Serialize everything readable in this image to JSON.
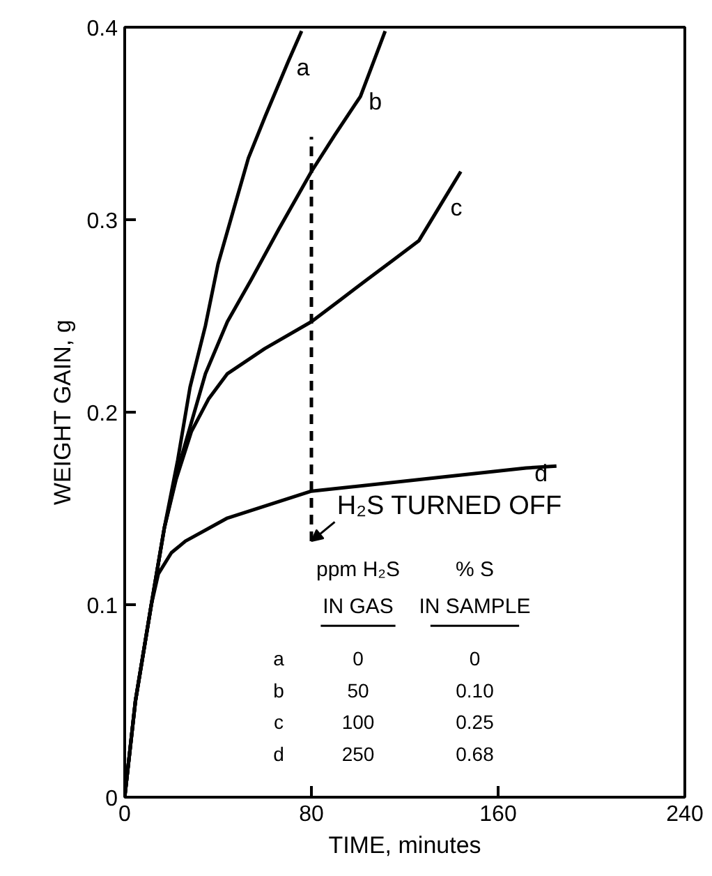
{
  "chart_data": {
    "type": "line",
    "xlabel": "TIME, minutes",
    "ylabel": "WEIGHT GAIN, g",
    "xlim": [
      0,
      240
    ],
    "xticks": [
      0,
      80,
      160,
      240
    ],
    "ylim": [
      0,
      0.4
    ],
    "yticks": [
      0,
      0.1,
      0.2,
      0.3,
      0.4
    ],
    "grid": false,
    "series": [
      {
        "name": "a",
        "color": "#000000",
        "x": [
          0,
          4.6,
          11.4,
          17,
          22.7,
          28,
          34.6,
          40,
          46.6,
          53,
          60.3,
          70,
          75.8
        ],
        "values": [
          0,
          0.05,
          0.1,
          0.14,
          0.175,
          0.213,
          0.245,
          0.277,
          0.305,
          0.332,
          0.354,
          0.382,
          0.398
        ]
      },
      {
        "name": "b",
        "color": "#000000",
        "x": [
          0,
          4.6,
          11.4,
          17,
          22.7,
          34.6,
          44,
          54.3,
          66,
          80,
          90,
          101,
          111.6
        ],
        "values": [
          0,
          0.05,
          0.1,
          0.14,
          0.17,
          0.22,
          0.247,
          0.269,
          0.295,
          0.325,
          0.344,
          0.364,
          0.398
        ]
      },
      {
        "name": "c",
        "color": "#000000",
        "x": [
          0,
          4.6,
          11.4,
          17,
          22,
          28.6,
          36,
          44,
          60,
          80,
          92,
          104,
          115,
          126,
          136,
          144
        ],
        "values": [
          0,
          0.05,
          0.1,
          0.14,
          0.165,
          0.19,
          0.207,
          0.22,
          0.233,
          0.247,
          0.258,
          0.269,
          0.279,
          0.289,
          0.309,
          0.325
        ]
      },
      {
        "name": "d",
        "color": "#000000",
        "x": [
          0,
          4.6,
          11.4,
          14.4,
          20,
          26,
          44,
          80,
          134,
          172,
          185
        ],
        "values": [
          0,
          0.05,
          0.1,
          0.116,
          0.127,
          0.133,
          0.145,
          0.159,
          0.166,
          0.171,
          0.172
        ]
      },
      {
        "color": "#000000",
        "line_style": "dashed",
        "x": [
          80,
          80
        ],
        "values": [
          0.133,
          0.343
        ]
      }
    ],
    "annotations": [
      {
        "text": "H₂S TURNED OFF",
        "x": 80,
        "y": 0.133
      },
      "ppm H₂S",
      "IN GAS",
      "% S",
      "IN SAMPLE",
      "a",
      "0",
      "0",
      "b",
      "50",
      "0.10",
      "c",
      "100",
      "0.25",
      "d",
      "250",
      "0.68"
    ]
  }
}
